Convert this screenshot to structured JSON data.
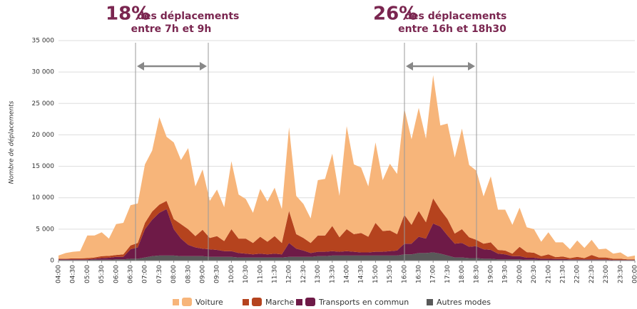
{
  "chart_data": {
    "type": "stacked_area",
    "y_label": "Nombre de déplacements",
    "annotations": [
      {
        "percent": "18%",
        "text": "des déplacements",
        "subtext": "entre 7h et 9h"
      },
      {
        "percent": "26%",
        "text": "des déplacements",
        "subtext": "entre 16h et 18h30"
      }
    ],
    "categories": [
      "04:00",
      null,
      "04:30",
      null,
      "05:00",
      null,
      "05:30",
      null,
      "06:00",
      null,
      "06:30",
      null,
      "07:00",
      null,
      "07:30",
      null,
      "08:00",
      null,
      "08:30",
      null,
      "09:00",
      null,
      "09:30",
      null,
      "10:00",
      null,
      "10:30",
      null,
      "11:00",
      null,
      "11:30",
      null,
      "12:00",
      null,
      "12:30",
      null,
      "13:00",
      null,
      "13:30",
      null,
      "14:00",
      null,
      "14:30",
      null,
      "15:00",
      null,
      "15:30",
      null,
      "16:00",
      null,
      "16:30",
      null,
      "17:00",
      null,
      "17:30",
      null,
      "18:00",
      null,
      "18:30",
      null,
      "19:00",
      null,
      "19:30",
      null,
      "20:00",
      null,
      "20:30",
      null,
      "21:00",
      null,
      "21:30",
      null,
      "22:00",
      null,
      "22:30",
      null,
      "23:00",
      null,
      "23:30",
      null,
      "00:00"
    ],
    "series": [
      {
        "name": "Voiture",
        "color": "#f7b57a",
        "values": [
          500,
          900,
          1050,
          1150,
          3600,
          3500,
          3800,
          2750,
          4900,
          5000,
          6400,
          6300,
          9300,
          9700,
          13900,
          10200,
          12200,
          10200,
          12900,
          7900,
          9600,
          5900,
          7400,
          5400,
          10800,
          7000,
          6300,
          4800,
          7600,
          6400,
          7700,
          5400,
          13300,
          6100,
          5400,
          3900,
          8800,
          9000,
          11500,
          6600,
          16400,
          11100,
          10400,
          8000,
          12800,
          8100,
          10600,
          9600,
          16900,
          13600,
          16400,
          13300,
          19600,
          13400,
          15200,
          12100,
          16000,
          11500,
          11000,
          7500,
          10500,
          6400,
          6500,
          4600,
          6200,
          3950,
          3750,
          2300,
          3500,
          2350,
          2250,
          1400,
          2600,
          1600,
          2400,
          1300,
          1400,
          800,
          1000,
          400,
          600
        ]
      },
      {
        "name": "Marche",
        "color": "#b5431e",
        "values": [
          100,
          100,
          150,
          150,
          200,
          200,
          300,
          300,
          300,
          400,
          600,
          700,
          1000,
          1300,
          1300,
          1300,
          1600,
          2300,
          2500,
          1800,
          3000,
          1800,
          2200,
          1600,
          3500,
          2300,
          2400,
          1800,
          2700,
          2000,
          2800,
          1800,
          5100,
          2300,
          2000,
          1600,
          2600,
          2600,
          4000,
          2300,
          3500,
          2800,
          3100,
          2500,
          4600,
          3300,
          3300,
          2600,
          4600,
          3000,
          4100,
          2600,
          4000,
          2700,
          2600,
          1600,
          2200,
          1500,
          1000,
          900,
          1200,
          600,
          600,
          400,
          1500,
          900,
          800,
          400,
          700,
          300,
          400,
          200,
          400,
          200,
          700,
          300,
          300,
          200,
          200,
          100,
          100
        ]
      },
      {
        "name": "Transports en commun",
        "color": "#6e1a47",
        "values": [
          100,
          100,
          100,
          100,
          100,
          150,
          250,
          300,
          400,
          400,
          1500,
          1800,
          4500,
          5800,
          6800,
          7400,
          4200,
          2800,
          1800,
          1400,
          1200,
          1200,
          1100,
          900,
          900,
          700,
          600,
          500,
          600,
          500,
          600,
          500,
          2200,
          1300,
          1000,
          600,
          700,
          700,
          700,
          600,
          700,
          600,
          500,
          500,
          600,
          600,
          700,
          800,
          1700,
          1700,
          2600,
          2300,
          4600,
          4300,
          3200,
          2200,
          2300,
          1800,
          1900,
          1500,
          1400,
          900,
          800,
          500,
          500,
          300,
          300,
          200,
          200,
          150,
          150,
          100,
          100,
          100,
          100,
          100,
          100,
          50,
          50,
          50,
          50
        ]
      },
      {
        "name": "Autres modes",
        "color": "#595959",
        "values": [
          100,
          100,
          100,
          100,
          100,
          150,
          150,
          150,
          200,
          200,
          300,
          300,
          500,
          700,
          800,
          800,
          800,
          700,
          700,
          700,
          700,
          600,
          600,
          600,
          600,
          500,
          500,
          500,
          500,
          500,
          500,
          500,
          600,
          600,
          600,
          600,
          700,
          700,
          800,
          800,
          800,
          800,
          800,
          800,
          800,
          800,
          800,
          800,
          1000,
          1000,
          1200,
          1200,
          1300,
          1100,
          800,
          500,
          500,
          400,
          400,
          300,
          300,
          200,
          200,
          200,
          200,
          150,
          150,
          100,
          100,
          100,
          100,
          100,
          100,
          100,
          100,
          100,
          100,
          50,
          50,
          50,
          50
        ]
      }
    ],
    "ylim": [
      0,
      35000
    ],
    "yticks": [
      0,
      {
        "value": 5000,
        "label": "5 000"
      },
      {
        "value": 10000,
        "label": "10 000"
      },
      {
        "value": 15000,
        "label": "15 000"
      },
      {
        "value": 20000,
        "label": "20 000"
      },
      {
        "value": 25000,
        "label": "25 000"
      },
      {
        "value": 30000,
        "label": "30 000"
      },
      {
        "value": 35000,
        "label": "35 000"
      }
    ],
    "grid": true
  }
}
